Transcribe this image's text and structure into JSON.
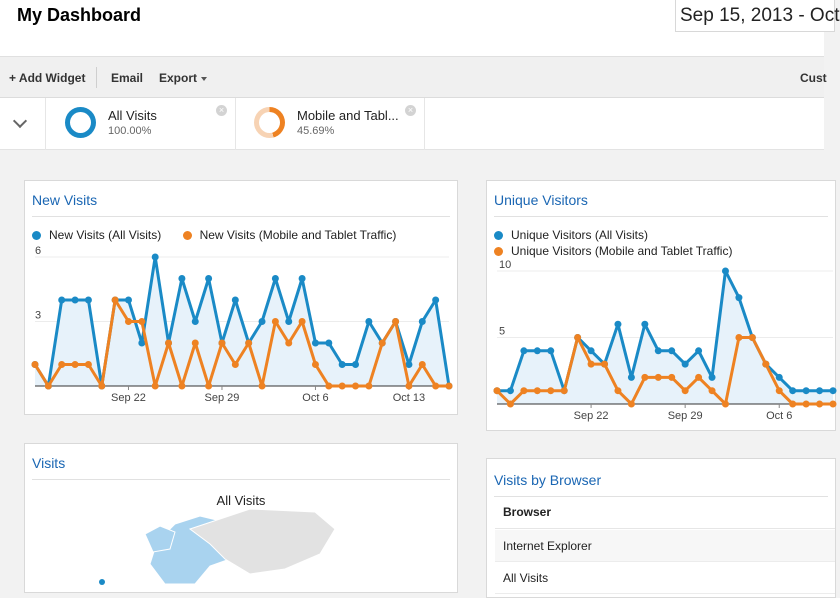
{
  "header": {
    "title": "My Dashboard",
    "date_range": "Sep 15, 2013 - Oct"
  },
  "toolbar": {
    "add_widget": "+ Add Widget",
    "email": "Email",
    "export": "Export",
    "customize": "Cust"
  },
  "segments": [
    {
      "name": "All Visits",
      "percent": "100.00%",
      "color": "#1a8ac6"
    },
    {
      "name": "Mobile and Tabl...",
      "percent": "45.69%",
      "color": "#ee8222"
    }
  ],
  "colors": {
    "series_1": "#1a8ac6",
    "series_2": "#ee8222",
    "link": "#1a66b3"
  },
  "widgets": {
    "new_visits": {
      "title": "New Visits",
      "legend": [
        "New Visits (All Visits)",
        "New Visits (Mobile and Tablet Traffic)"
      ]
    },
    "unique_visitors": {
      "title": "Unique Visitors",
      "legend": [
        "Unique Visitors (All Visits)",
        "Unique Visitors (Mobile and Tablet Traffic)"
      ]
    },
    "visits_map": {
      "title": "Visits",
      "subtitle": "All Visits"
    },
    "visits_by_browser": {
      "title": "Visits by Browser",
      "column": "Browser",
      "rows": [
        "Internet Explorer",
        "All Visits"
      ]
    }
  },
  "chart_data": [
    {
      "type": "line",
      "title": "New Visits",
      "x_tick_labels": [
        "Sep 22",
        "Sep 29",
        "Oct 6",
        "Oct 13"
      ],
      "y_tick_labels": [
        "6",
        "3"
      ],
      "ylim": [
        0,
        6
      ],
      "x": [
        "Sep 15",
        "Sep 16",
        "Sep 17",
        "Sep 18",
        "Sep 19",
        "Sep 20",
        "Sep 21",
        "Sep 22",
        "Sep 23",
        "Sep 24",
        "Sep 25",
        "Sep 26",
        "Sep 27",
        "Sep 28",
        "Sep 29",
        "Sep 30",
        "Oct 1",
        "Oct 2",
        "Oct 3",
        "Oct 4",
        "Oct 5",
        "Oct 6",
        "Oct 7",
        "Oct 8",
        "Oct 9",
        "Oct 10",
        "Oct 11",
        "Oct 12",
        "Oct 13",
        "Oct 14",
        "Oct 15",
        "Oct 16"
      ],
      "series": [
        {
          "name": "New Visits (All Visits)",
          "color": "#1a8ac6",
          "values": [
            1,
            0,
            4,
            4,
            4,
            0,
            4,
            4,
            2,
            6,
            2,
            5,
            3,
            5,
            2,
            4,
            2,
            3,
            5,
            3,
            5,
            2,
            2,
            1,
            1,
            3,
            2,
            3,
            1,
            3,
            4,
            0
          ]
        },
        {
          "name": "New Visits (Mobile and Tablet Traffic)",
          "color": "#ee8222",
          "values": [
            1,
            0,
            1,
            1,
            1,
            0,
            4,
            3,
            3,
            0,
            2,
            0,
            2,
            0,
            2,
            1,
            2,
            0,
            3,
            2,
            3,
            1,
            0,
            0,
            0,
            0,
            2,
            3,
            0,
            1,
            0,
            0
          ]
        }
      ]
    },
    {
      "type": "line",
      "title": "Unique Visitors",
      "x_tick_labels": [
        "Sep 22",
        "Sep 29",
        "Oct 6"
      ],
      "y_tick_labels": [
        "10",
        "5"
      ],
      "ylim": [
        0,
        10
      ],
      "x": [
        "Sep 15",
        "Sep 16",
        "Sep 17",
        "Sep 18",
        "Sep 19",
        "Sep 20",
        "Sep 21",
        "Sep 22",
        "Sep 23",
        "Sep 24",
        "Sep 25",
        "Sep 26",
        "Sep 27",
        "Sep 28",
        "Sep 29",
        "Sep 30",
        "Oct 1",
        "Oct 2",
        "Oct 3",
        "Oct 4",
        "Oct 5",
        "Oct 6",
        "Oct 7",
        "Oct 8",
        "Oct 9",
        "Oct 10"
      ],
      "series": [
        {
          "name": "Unique Visitors (All Visits)",
          "color": "#1a8ac6",
          "values": [
            1,
            1,
            4,
            4,
            4,
            1,
            5,
            4,
            3,
            6,
            2,
            6,
            4,
            4,
            3,
            4,
            2,
            10,
            8,
            5,
            3,
            2,
            1,
            1,
            1,
            1
          ]
        },
        {
          "name": "Unique Visitors (Mobile and Tablet Traffic)",
          "color": "#ee8222",
          "values": [
            1,
            0,
            1,
            1,
            1,
            1,
            5,
            3,
            3,
            1,
            0,
            2,
            2,
            2,
            1,
            2,
            1,
            0,
            5,
            5,
            3,
            1,
            0,
            0,
            0,
            0
          ]
        }
      ]
    }
  ]
}
